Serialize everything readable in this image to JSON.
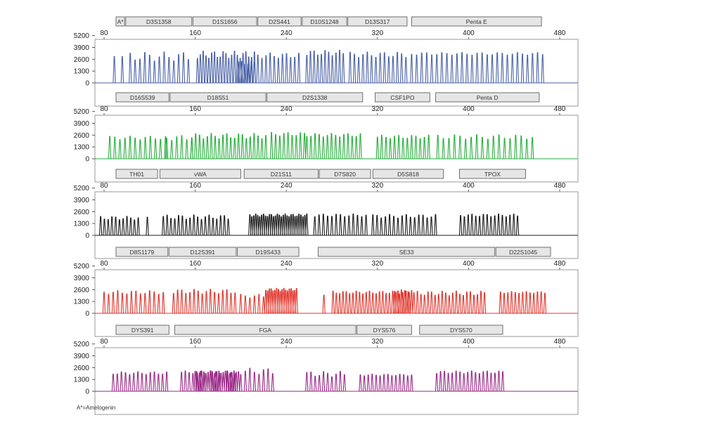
{
  "chart_data": {
    "type": "line",
    "title": "",
    "x_ticks": [
      80,
      160,
      240,
      320,
      400,
      480
    ],
    "y_ticks": [
      0,
      1300,
      2600,
      3900,
      5200
    ],
    "xlim": [
      80,
      490
    ],
    "ylim": [
      0,
      5400
    ],
    "grid": false,
    "footnote": "A*=Amelogenin",
    "panels": [
      {
        "name": "",
        "color": "#4a62a6",
        "loci": [
          {
            "label": "A*",
            "start": 90,
            "end": 98
          },
          {
            "label": "D3S1358",
            "start": 99,
            "end": 157
          },
          {
            "label": "D1S1656",
            "start": 158,
            "end": 214
          },
          {
            "label": "D2S441",
            "start": 215,
            "end": 253
          },
          {
            "label": "D10S1248",
            "start": 254,
            "end": 293
          },
          {
            "label": "D13S317",
            "start": 294,
            "end": 346
          },
          {
            "label": "Penta E",
            "start": 350,
            "end": 464
          }
        ],
        "peak_groups": [
          {
            "x_start": 89,
            "x_end": 96,
            "count": 2,
            "height": 2900,
            "amp": 0
          },
          {
            "x_start": 103,
            "x_end": 154,
            "count": 13,
            "height": 2900,
            "amp": 500
          },
          {
            "x_start": 162,
            "x_end": 212,
            "count": 21,
            "height": 3100,
            "amp": 400
          },
          {
            "x_start": 198,
            "x_end": 212,
            "count": 6,
            "height": 2200,
            "amp": 200
          },
          {
            "x_start": 215,
            "x_end": 251,
            "count": 11,
            "height": 3000,
            "amp": 300
          },
          {
            "x_start": 258,
            "x_end": 290,
            "count": 11,
            "height": 3300,
            "amp": 300
          },
          {
            "x_start": 296,
            "x_end": 345,
            "count": 14,
            "height": 3100,
            "amp": 300
          },
          {
            "x_start": 350,
            "x_end": 465,
            "count": 27,
            "height": 3200,
            "amp": 150
          }
        ]
      },
      {
        "name": "",
        "color": "#27ae3c",
        "loci": [
          {
            "label": "D16S539",
            "start": 84,
            "end": 137
          },
          {
            "label": "D18S51",
            "start": 138,
            "end": 222
          },
          {
            "label": "D2S1338",
            "start": 223,
            "end": 307
          },
          {
            "label": "CSF1PO",
            "start": 318,
            "end": 366
          },
          {
            "label": "Penta D",
            "start": 371,
            "end": 462
          }
        ],
        "peak_groups": [
          {
            "x_start": 85,
            "x_end": 134,
            "count": 12,
            "height": 2300,
            "amp": 200
          },
          {
            "x_start": 135,
            "x_end": 157,
            "count": 6,
            "height": 2300,
            "amp": 300
          },
          {
            "x_start": 157,
            "x_end": 222,
            "count": 20,
            "height": 2500,
            "amp": 300
          },
          {
            "x_start": 227,
            "x_end": 256,
            "count": 9,
            "height": 2700,
            "amp": 200
          },
          {
            "x_start": 258,
            "x_end": 305,
            "count": 14,
            "height": 2600,
            "amp": 200
          },
          {
            "x_start": 320,
            "x_end": 365,
            "count": 13,
            "height": 2400,
            "amp": 200
          },
          {
            "x_start": 373,
            "x_end": 456,
            "count": 18,
            "height": 2400,
            "amp": 250
          }
        ]
      },
      {
        "name": "",
        "color": "#1a1a1a",
        "loci": [
          {
            "label": "TH01",
            "start": 75,
            "end": 127
          },
          {
            "label": "vWA",
            "start": 129,
            "end": 200
          },
          {
            "label": "D21S11",
            "start": 203,
            "end": 268
          },
          {
            "label": "D7S820",
            "start": 269,
            "end": 314
          },
          {
            "label": "D5S818",
            "start": 316,
            "end": 378
          },
          {
            "label": "TPOX",
            "start": 392,
            "end": 450
          }
        ],
        "peak_groups": [
          {
            "x_start": 77,
            "x_end": 110,
            "count": 11,
            "height": 1900,
            "amp": 200
          },
          {
            "x_start": 118,
            "x_end": 118,
            "count": 1,
            "height": 2000,
            "amp": 0
          },
          {
            "x_start": 132,
            "x_end": 189,
            "count": 18,
            "height": 2000,
            "amp": 250
          },
          {
            "x_start": 208,
            "x_end": 258,
            "count": 30,
            "height": 2200,
            "amp": 150
          },
          {
            "x_start": 265,
            "x_end": 310,
            "count": 13,
            "height": 2200,
            "amp": 150
          },
          {
            "x_start": 316,
            "x_end": 371,
            "count": 16,
            "height": 2100,
            "amp": 200
          },
          {
            "x_start": 393,
            "x_end": 443,
            "count": 16,
            "height": 2200,
            "amp": 150
          }
        ]
      },
      {
        "name": "",
        "color": "#e0342a",
        "loci": [
          {
            "label": "D8S1179",
            "start": 76,
            "end": 136
          },
          {
            "label": "D12S391",
            "start": 137,
            "end": 196
          },
          {
            "label": "D19S433",
            "start": 197,
            "end": 251
          },
          {
            "label": "SE33",
            "start": 268,
            "end": 423
          },
          {
            "label": "D22S1045",
            "start": 424,
            "end": 472
          }
        ],
        "peak_groups": [
          {
            "x_start": 80,
            "x_end": 132,
            "count": 14,
            "height": 2300,
            "amp": 200
          },
          {
            "x_start": 141,
            "x_end": 195,
            "count": 16,
            "height": 2400,
            "amp": 250
          },
          {
            "x_start": 200,
            "x_end": 220,
            "count": 6,
            "height": 1900,
            "amp": 200
          },
          {
            "x_start": 222,
            "x_end": 249,
            "count": 18,
            "height": 2600,
            "amp": 150
          },
          {
            "x_start": 273,
            "x_end": 273,
            "count": 1,
            "height": 2000,
            "amp": 0
          },
          {
            "x_start": 281,
            "x_end": 348,
            "count": 24,
            "height": 2300,
            "amp": 150
          },
          {
            "x_start": 335,
            "x_end": 350,
            "count": 6,
            "height": 2500,
            "amp": 100
          },
          {
            "x_start": 352,
            "x_end": 414,
            "count": 21,
            "height": 2200,
            "amp": 250
          },
          {
            "x_start": 428,
            "x_end": 467,
            "count": 13,
            "height": 2300,
            "amp": 100
          }
        ]
      },
      {
        "name": "",
        "color": "#9a2a87",
        "loci": [
          {
            "label": "DYS391",
            "start": 88,
            "end": 137
          },
          {
            "label": "FGA",
            "start": 142,
            "end": 301
          },
          {
            "label": "DYS576",
            "start": 302,
            "end": 350
          },
          {
            "label": "DYS570",
            "start": 357,
            "end": 430
          }
        ],
        "peak_groups": [
          {
            "x_start": 88,
            "x_end": 135,
            "count": 14,
            "height": 2000,
            "amp": 150
          },
          {
            "x_start": 148,
            "x_end": 198,
            "count": 16,
            "height": 2100,
            "amp": 150
          },
          {
            "x_start": 160,
            "x_end": 196,
            "count": 20,
            "height": 2100,
            "amp": 150
          },
          {
            "x_start": 200,
            "x_end": 228,
            "count": 8,
            "height": 2200,
            "amp": 350
          },
          {
            "x_start": 258,
            "x_end": 291,
            "count": 10,
            "height": 1900,
            "amp": 300
          },
          {
            "x_start": 305,
            "x_end": 350,
            "count": 14,
            "height": 1800,
            "amp": 100
          },
          {
            "x_start": 372,
            "x_end": 430,
            "count": 18,
            "height": 2100,
            "amp": 150
          }
        ]
      }
    ]
  }
}
